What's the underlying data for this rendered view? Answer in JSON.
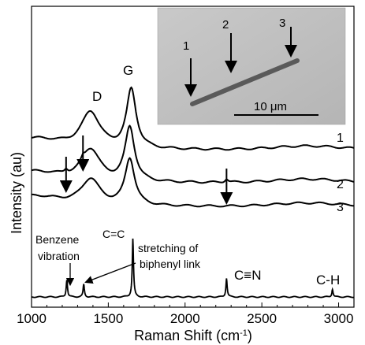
{
  "chart_data": {
    "type": "line",
    "xlabel_base": "Raman Shift (cm",
    "xlabel_sup": "-1",
    "xlabel_tail": ")",
    "ylabel": "Intensity (au)",
    "xlim": [
      1000,
      3100
    ],
    "x_ticks": [
      "1000",
      "1500",
      "2000",
      "2500",
      "3000"
    ],
    "band_labels": {
      "D": "D",
      "G": "G",
      "CC": "C=C",
      "CN": "C≡N",
      "CH": "C-H"
    },
    "annotations": {
      "benzene_line1": "Benzene",
      "benzene_line2": "vibration",
      "stretch_line1": "stretching of",
      "stretch_line2": "biphenyl link"
    },
    "series": [
      {
        "name": "1",
        "type": "raman-broad",
        "d_peak": 1385,
        "g_peak": 1650,
        "d_height": 0.62,
        "g_height": 1.0,
        "extra_peaks": []
      },
      {
        "name": "2",
        "type": "raman-broad",
        "d_peak": 1385,
        "g_peak": 1640,
        "d_height": 0.55,
        "g_height": 0.92,
        "extra_peaks": [
          1225,
          1335,
          2270
        ]
      },
      {
        "name": "3",
        "type": "raman-broad",
        "d_peak": 1385,
        "g_peak": 1640,
        "d_height": 0.48,
        "g_height": 0.85,
        "extra_peaks": []
      },
      {
        "name": "",
        "type": "molecular",
        "peaks": [
          1230,
          1340,
          1660,
          2270,
          2960
        ]
      }
    ],
    "arrows": [
      1225,
      1335,
      2270
    ],
    "inset": {
      "scale_bar_label": "10 μm",
      "points": [
        "1",
        "2",
        "3"
      ]
    }
  }
}
